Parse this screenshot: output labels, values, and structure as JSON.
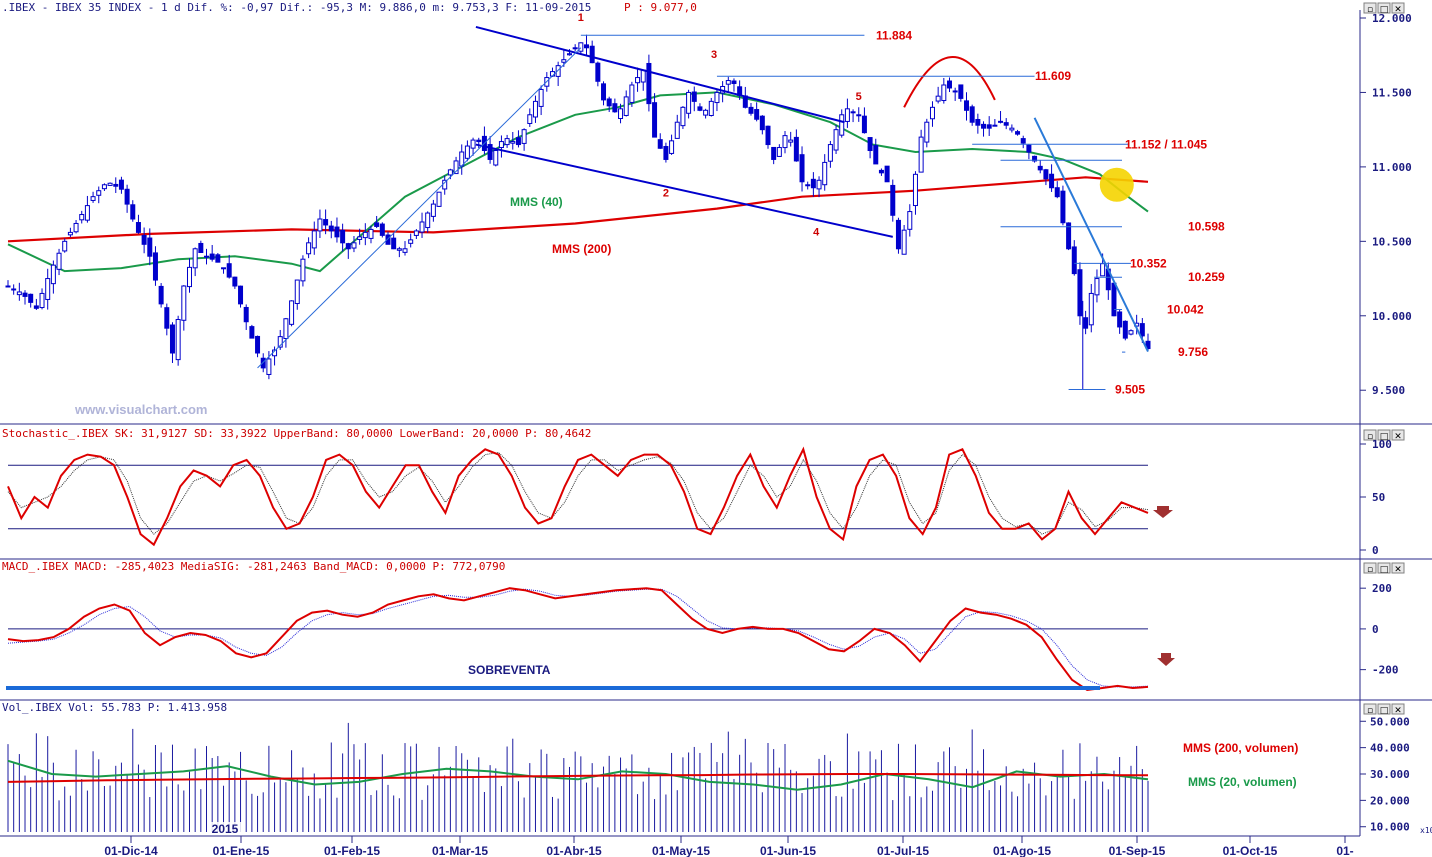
{
  "panels": {
    "price": {
      "header": ".IBEX - IBEX 35 INDEX -  1 d Dif. %: -0,97 Dif.: -95,3 M: 9.886,0 m: 9.753,3 F: 11-09-2015",
      "header_p": "P : 9.077,0",
      "watermark": "www.visualchart.com"
    },
    "stochastic": {
      "header": "Stochastic_.IBEX SK: 31,9127 SD: 33,3922 UpperBand: 80,0000 LowerBand: 20,0000 P: 80,4642"
    },
    "macd": {
      "header": "MACD_.IBEX MACD: -285,4023 MediaSIG: -281,2463 Band_MACD: 0,0000 P: 772,0790"
    },
    "volume": {
      "header": "Vol_.IBEX Vol: 55.783 P: 1.413.958"
    }
  },
  "window_buttons": [
    "▫",
    "□",
    "✕"
  ],
  "chart_data": [
    {
      "type": "candlestick",
      "title": "IBEX 35 INDEX",
      "ylim": [
        9300,
        12000
      ],
      "yticks": [
        "12.000",
        "11.500",
        "11.000",
        "10.500",
        "10.000",
        "9.500"
      ],
      "ytick_values": [
        12000,
        11500,
        11000,
        10500,
        10000,
        9500
      ],
      "xticks": [
        "01-Dic-14",
        "01-Ene-15",
        "01-Feb-15",
        "01-Mar-15",
        "01-Abr-15",
        "01-May-15",
        "01-Jun-15",
        "01-Jul-15",
        "01-Ago-15",
        "01-Sep-15",
        "01-Oct-15",
        "01-"
      ],
      "year_label": "2015",
      "levels": [
        {
          "label": "11.884",
          "value": 11884
        },
        {
          "label": "11.609",
          "value": 11609
        },
        {
          "label": "11.152 / 11.045",
          "value": 11152
        },
        {
          "label": "10.598",
          "value": 10598
        },
        {
          "label": "10.352",
          "value": 10352
        },
        {
          "label": "10.259",
          "value": 10259
        },
        {
          "label": "10.042",
          "value": 10042
        },
        {
          "label": "9.756",
          "value": 9756
        },
        {
          "label": "9.505",
          "value": 9505
        }
      ],
      "wave_labels": [
        "1",
        "2",
        "3",
        "4",
        "5"
      ],
      "series_labels": {
        "mms40": "MMS (40)",
        "mms200": "MMS (200)"
      },
      "close_path": [
        [
          0,
          10200
        ],
        [
          5,
          10150
        ],
        [
          10,
          10050
        ],
        [
          15,
          10300
        ],
        [
          20,
          10500
        ],
        [
          25,
          10650
        ],
        [
          30,
          10800
        ],
        [
          35,
          10900
        ],
        [
          40,
          10850
        ],
        [
          45,
          10600
        ],
        [
          50,
          10400
        ],
        [
          55,
          10000
        ],
        [
          58,
          9750
        ],
        [
          62,
          10200
        ],
        [
          66,
          10450
        ],
        [
          70,
          10400
        ],
        [
          75,
          10350
        ],
        [
          80,
          10200
        ],
        [
          85,
          9900
        ],
        [
          90,
          9650
        ],
        [
          95,
          9800
        ],
        [
          100,
          10100
        ],
        [
          105,
          10450
        ],
        [
          110,
          10650
        ],
        [
          115,
          10550
        ],
        [
          120,
          10450
        ],
        [
          125,
          10550
        ],
        [
          130,
          10600
        ],
        [
          135,
          10450
        ],
        [
          140,
          10450
        ],
        [
          145,
          10600
        ],
        [
          150,
          10750
        ],
        [
          155,
          10950
        ],
        [
          160,
          11100
        ],
        [
          165,
          11200
        ],
        [
          170,
          11050
        ],
        [
          175,
          11200
        ],
        [
          180,
          11150
        ],
        [
          185,
          11400
        ],
        [
          190,
          11600
        ],
        [
          195,
          11700
        ],
        [
          200,
          11800
        ],
        [
          203,
          11850
        ],
        [
          206,
          11700
        ],
        [
          210,
          11450
        ],
        [
          215,
          11350
        ],
        [
          220,
          11550
        ],
        [
          224,
          11650
        ],
        [
          228,
          11200
        ],
        [
          232,
          11050
        ],
        [
          236,
          11300
        ],
        [
          240,
          11500
        ],
        [
          245,
          11350
        ],
        [
          250,
          11500
        ],
        [
          255,
          11600
        ],
        [
          260,
          11400
        ],
        [
          265,
          11300
        ],
        [
          270,
          11050
        ],
        [
          275,
          11250
        ],
        [
          280,
          10900
        ],
        [
          285,
          10850
        ],
        [
          290,
          11150
        ],
        [
          295,
          11400
        ],
        [
          300,
          11350
        ],
        [
          305,
          11050
        ],
        [
          310,
          10900
        ],
        [
          314,
          10450
        ],
        [
          318,
          10700
        ],
        [
          322,
          11200
        ],
        [
          326,
          11400
        ],
        [
          330,
          11550
        ],
        [
          335,
          11500
        ],
        [
          340,
          11300
        ],
        [
          345,
          11250
        ],
        [
          350,
          11300
        ],
        [
          355,
          11250
        ],
        [
          360,
          11100
        ],
        [
          365,
          10950
        ],
        [
          370,
          10800
        ],
        [
          374,
          10450
        ],
        [
          377,
          10200
        ],
        [
          379,
          9800
        ],
        [
          382,
          10150
        ],
        [
          386,
          10350
        ],
        [
          390,
          10000
        ],
        [
          394,
          9850
        ],
        [
          398,
          9950
        ],
        [
          402,
          9780
        ]
      ],
      "mms40_path": [
        [
          0,
          10480
        ],
        [
          20,
          10300
        ],
        [
          40,
          10320
        ],
        [
          60,
          10380
        ],
        [
          80,
          10400
        ],
        [
          100,
          10350
        ],
        [
          110,
          10300
        ],
        [
          125,
          10550
        ],
        [
          140,
          10800
        ],
        [
          160,
          11000
        ],
        [
          180,
          11200
        ],
        [
          200,
          11350
        ],
        [
          215,
          11400
        ],
        [
          230,
          11480
        ],
        [
          250,
          11500
        ],
        [
          270,
          11420
        ],
        [
          290,
          11300
        ],
        [
          305,
          11150
        ],
        [
          320,
          11100
        ],
        [
          340,
          11120
        ],
        [
          360,
          11100
        ],
        [
          372,
          11050
        ],
        [
          385,
          10950
        ],
        [
          395,
          10800
        ],
        [
          402,
          10700
        ]
      ],
      "mms200_path": [
        [
          0,
          10500
        ],
        [
          50,
          10550
        ],
        [
          100,
          10580
        ],
        [
          150,
          10560
        ],
        [
          200,
          10620
        ],
        [
          250,
          10720
        ],
        [
          280,
          10800
        ],
        [
          300,
          10820
        ],
        [
          320,
          10840
        ],
        [
          340,
          10870
        ],
        [
          360,
          10900
        ],
        [
          380,
          10930
        ],
        [
          402,
          10900
        ]
      ]
    },
    {
      "type": "line",
      "title": "Stochastic",
      "ylim": [
        0,
        100
      ],
      "yticks": [
        "100",
        "50",
        "0"
      ],
      "ytick_values": [
        100,
        50,
        0
      ],
      "bands": [
        80,
        20
      ],
      "series": [
        {
          "name": "SK",
          "values": [
            60,
            30,
            50,
            40,
            70,
            85,
            90,
            88,
            80,
            50,
            15,
            5,
            30,
            60,
            75,
            70,
            60,
            80,
            85,
            70,
            40,
            20,
            25,
            50,
            85,
            90,
            80,
            55,
            40,
            60,
            80,
            80,
            55,
            35,
            70,
            85,
            95,
            90,
            70,
            40,
            25,
            30,
            60,
            85,
            90,
            80,
            70,
            85,
            90,
            90,
            80,
            55,
            20,
            15,
            40,
            70,
            90,
            60,
            40,
            70,
            95,
            50,
            20,
            10,
            60,
            85,
            90,
            70,
            30,
            15,
            40,
            90,
            95,
            70,
            35,
            20,
            20,
            25,
            10,
            20,
            55,
            30,
            15,
            30,
            45,
            40,
            35
          ]
        },
        {
          "name": "SD",
          "values": [
            55,
            40,
            45,
            50,
            60,
            75,
            85,
            88,
            85,
            65,
            30,
            15,
            25,
            45,
            65,
            70,
            65,
            72,
            80,
            78,
            55,
            30,
            25,
            40,
            70,
            85,
            85,
            65,
            50,
            55,
            70,
            78,
            65,
            45,
            60,
            78,
            90,
            92,
            80,
            55,
            35,
            30,
            45,
            70,
            85,
            85,
            75,
            80,
            85,
            88,
            82,
            65,
            35,
            20,
            30,
            55,
            80,
            70,
            50,
            60,
            85,
            65,
            35,
            20,
            40,
            70,
            85,
            80,
            45,
            25,
            35,
            75,
            90,
            80,
            50,
            30,
            22,
            25,
            15,
            20,
            45,
            38,
            22,
            28,
            40,
            40,
            38
          ]
        }
      ]
    },
    {
      "type": "line",
      "title": "MACD",
      "ylim": [
        -300,
        250
      ],
      "yticks": [
        "200",
        "0",
        "-200"
      ],
      "ytick_values": [
        200,
        0,
        -200
      ],
      "annotation": "SOBREVENTA",
      "series": [
        {
          "name": "MACD",
          "values": [
            -50,
            -60,
            -55,
            -40,
            0,
            60,
            100,
            120,
            90,
            -20,
            -80,
            -40,
            -20,
            -30,
            -60,
            -120,
            -140,
            -120,
            -40,
            40,
            80,
            90,
            70,
            60,
            80,
            120,
            140,
            160,
            170,
            150,
            140,
            160,
            180,
            200,
            190,
            170,
            150,
            160,
            170,
            180,
            190,
            195,
            200,
            190,
            120,
            50,
            0,
            -20,
            0,
            10,
            0,
            0,
            -20,
            -60,
            -100,
            -110,
            -60,
            0,
            -20,
            -80,
            -160,
            -60,
            40,
            100,
            80,
            70,
            50,
            20,
            -40,
            -150,
            -250,
            -300,
            -290,
            -280,
            -290,
            -285
          ]
        },
        {
          "name": "MediaSIG",
          "values": [
            -70,
            -65,
            -60,
            -50,
            -20,
            20,
            70,
            100,
            110,
            60,
            -10,
            -40,
            -30,
            -30,
            -45,
            -90,
            -120,
            -130,
            -90,
            -20,
            40,
            70,
            80,
            70,
            75,
            100,
            120,
            140,
            160,
            165,
            155,
            155,
            165,
            185,
            195,
            185,
            165,
            160,
            165,
            175,
            185,
            190,
            195,
            195,
            160,
            100,
            40,
            5,
            0,
            5,
            5,
            0,
            -10,
            -40,
            -75,
            -100,
            -85,
            -40,
            -20,
            -50,
            -120,
            -100,
            -20,
            60,
            85,
            80,
            65,
            40,
            0,
            -80,
            -180,
            -250,
            -280,
            -285,
            -285,
            -281
          ]
        }
      ]
    },
    {
      "type": "bar",
      "title": "Volumen",
      "ylim": [
        8000,
        52000
      ],
      "yticks": [
        "50.000",
        "40.000",
        "30.000",
        "20.000",
        "10.000"
      ],
      "ytick_values": [
        50000,
        40000,
        30000,
        20000,
        10000
      ],
      "unit_label": "x10",
      "series_labels": {
        "mms200": "MMS (200, volumen)",
        "mms20": "MMS (20, volumen)"
      },
      "mms200_values": [
        27000,
        27300,
        27600,
        27800,
        28000,
        28200,
        28300,
        28500,
        28600,
        28800,
        29000,
        29200,
        29400,
        29500,
        29600,
        29800,
        29900,
        30000,
        30000,
        29900,
        29800,
        29700,
        29600,
        29500
      ],
      "mms20_values": [
        35000,
        30000,
        29000,
        30000,
        31000,
        33000,
        29000,
        26000,
        27000,
        30000,
        32000,
        31000,
        29000,
        28000,
        31000,
        30000,
        27000,
        26000,
        24000,
        26000,
        30000,
        28000,
        25000,
        31000,
        29000,
        30000,
        28000
      ]
    }
  ]
}
